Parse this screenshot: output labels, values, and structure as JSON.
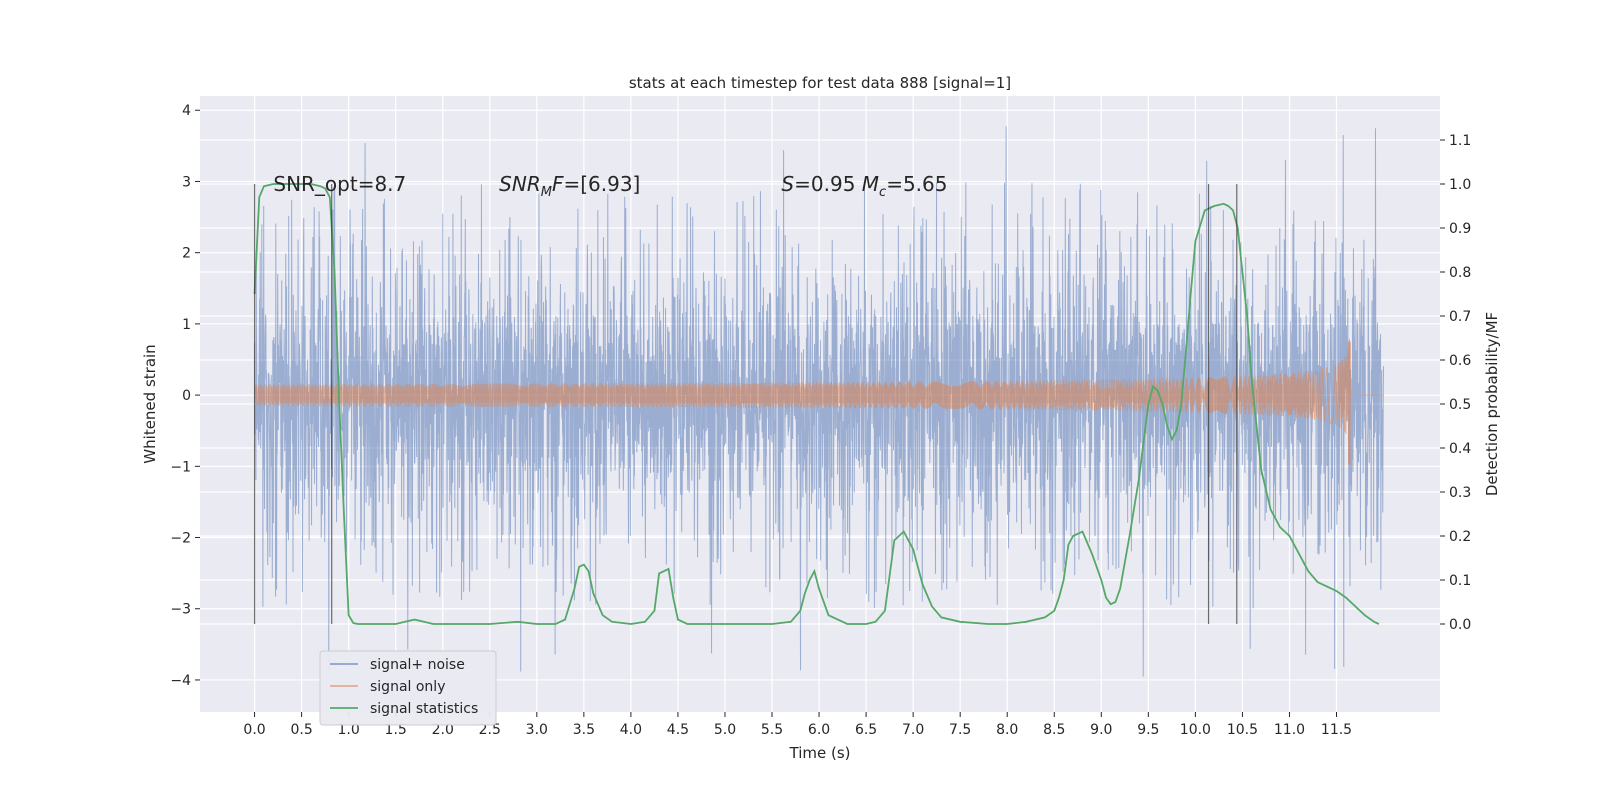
{
  "chart_data": {
    "type": "line",
    "title": "stats at each timestep for test data 888 [signal=1]",
    "xlabel": "Time (s)",
    "ylabel": "Whitened strain",
    "y2label": "Detection probability/MF",
    "xlim": [
      -0.58,
      12.6
    ],
    "ylim": [
      -4.45,
      4.2
    ],
    "y2lim": [
      -0.2,
      1.2
    ],
    "x_ticks": [
      0.0,
      0.5,
      1.0,
      1.5,
      2.0,
      2.5,
      3.0,
      3.5,
      4.0,
      4.5,
      5.0,
      5.5,
      6.0,
      6.5,
      7.0,
      7.5,
      8.0,
      8.5,
      9.0,
      9.5,
      10.0,
      10.5,
      11.0,
      11.5
    ],
    "x_tick_labels": [
      "0.0",
      "0.5",
      "1.0",
      "1.5",
      "2.0",
      "2.5",
      "3.0",
      "3.5",
      "4.0",
      "4.5",
      "5.0",
      "5.5",
      "6.0",
      "6.5",
      "7.0",
      "7.5",
      "8.0",
      "8.5",
      "9.0",
      "9.5",
      "10.0",
      "10.5",
      "11.0",
      "11.5"
    ],
    "y_ticks": [
      -4,
      -3,
      -2,
      -1,
      0,
      1,
      2,
      3,
      4
    ],
    "y_tick_labels": [
      "−4",
      "−3",
      "−2",
      "−1",
      "0",
      "1",
      "2",
      "3",
      "4"
    ],
    "y2_ticks": [
      0.0,
      0.1,
      0.2,
      0.3,
      0.4,
      0.5,
      0.6,
      0.7,
      0.8,
      0.9,
      1.0,
      1.1
    ],
    "y2_tick_labels": [
      "0.0",
      "0.1",
      "0.2",
      "0.3",
      "0.4",
      "0.5",
      "0.6",
      "0.7",
      "0.8",
      "0.9",
      "1.0",
      "1.1"
    ],
    "grid": true,
    "legend": "lower-left",
    "annotations": [
      {
        "text": "SNR_opt=8.7",
        "x": 0.2,
        "y2": 1.0
      },
      {
        "text": "SNR_MF=[6.93]",
        "x": 2.6,
        "y2": 1.0
      },
      {
        "text": "S=0.95   M_c=5.65",
        "x": 5.6,
        "y2": 1.0
      }
    ],
    "vertical_markers": [
      {
        "x": 0.0,
        "y2_range": [
          0.0,
          1.0
        ]
      },
      {
        "x": 0.82,
        "y2_range": [
          0.0,
          1.0
        ]
      },
      {
        "x": 10.14,
        "y2_range": [
          0.0,
          1.0
        ]
      },
      {
        "x": 10.44,
        "y2_range": [
          0.0,
          1.0
        ]
      }
    ],
    "series": [
      {
        "name": "signal+ noise",
        "color": "#4c72b0",
        "axis": "left",
        "x_range": [
          0.0,
          12.0
        ],
        "envelope": {
          "core": 1.2,
          "typical_peak": 2.4,
          "max": 3.85,
          "min": -4.1
        }
      },
      {
        "name": "signal only",
        "color": "#dd8452",
        "axis": "left",
        "x_range": [
          0.0,
          12.0
        ],
        "chirp": {
          "start_amp": 0.0,
          "peak_time": 11.65,
          "peak_pos": 0.75,
          "peak_neg": -0.98
        }
      },
      {
        "name": "signal statistics",
        "color": "#55a868",
        "axis": "right",
        "x": [
          0.0,
          0.05,
          0.1,
          0.2,
          0.3,
          0.4,
          0.5,
          0.6,
          0.7,
          0.75,
          0.8,
          0.85,
          0.9,
          0.95,
          1.0,
          1.05,
          1.1,
          1.3,
          1.5,
          1.6,
          1.7,
          1.8,
          1.9,
          2.0,
          2.2,
          2.5,
          2.8,
          3.0,
          3.2,
          3.3,
          3.4,
          3.45,
          3.5,
          3.55,
          3.6,
          3.7,
          3.8,
          4.0,
          4.15,
          4.25,
          4.3,
          4.35,
          4.4,
          4.45,
          4.5,
          4.6,
          5.0,
          5.5,
          5.7,
          5.8,
          5.85,
          5.9,
          5.95,
          6.0,
          6.1,
          6.3,
          6.5,
          6.6,
          6.7,
          6.8,
          6.85,
          6.9,
          7.0,
          7.1,
          7.2,
          7.3,
          7.5,
          7.8,
          8.0,
          8.2,
          8.4,
          8.5,
          8.55,
          8.6,
          8.65,
          8.7,
          8.8,
          8.9,
          9.0,
          9.05,
          9.1,
          9.15,
          9.2,
          9.3,
          9.4,
          9.5,
          9.55,
          9.6,
          9.65,
          9.7,
          9.75,
          9.8,
          9.85,
          9.9,
          9.95,
          10.0,
          10.1,
          10.2,
          10.3,
          10.35,
          10.4,
          10.45,
          10.5,
          10.55,
          10.6,
          10.7,
          10.8,
          10.9,
          11.0,
          11.1,
          11.2,
          11.3,
          11.4,
          11.5,
          11.6,
          11.7,
          11.8,
          11.9,
          11.95
        ],
        "values": [
          0.75,
          0.97,
          0.995,
          1.0,
          1.0,
          1.0,
          1.0,
          1.0,
          0.995,
          0.99,
          0.97,
          0.8,
          0.5,
          0.25,
          0.02,
          0.002,
          0.0,
          0.0,
          0.0,
          0.005,
          0.01,
          0.005,
          0.0,
          0.0,
          0.0,
          0.0,
          0.005,
          0.0,
          0.0,
          0.01,
          0.08,
          0.13,
          0.135,
          0.12,
          0.07,
          0.02,
          0.005,
          0.0,
          0.005,
          0.03,
          0.115,
          0.12,
          0.125,
          0.06,
          0.01,
          0.0,
          0.0,
          0.0,
          0.005,
          0.03,
          0.07,
          0.1,
          0.12,
          0.08,
          0.02,
          0.0,
          0.0,
          0.005,
          0.03,
          0.19,
          0.2,
          0.21,
          0.17,
          0.09,
          0.04,
          0.015,
          0.005,
          0.0,
          0.0,
          0.005,
          0.015,
          0.03,
          0.06,
          0.1,
          0.18,
          0.2,
          0.21,
          0.16,
          0.1,
          0.06,
          0.045,
          0.05,
          0.08,
          0.2,
          0.33,
          0.5,
          0.54,
          0.53,
          0.5,
          0.45,
          0.42,
          0.44,
          0.5,
          0.62,
          0.75,
          0.87,
          0.94,
          0.95,
          0.955,
          0.95,
          0.94,
          0.9,
          0.8,
          0.7,
          0.55,
          0.35,
          0.26,
          0.22,
          0.2,
          0.16,
          0.12,
          0.095,
          0.085,
          0.075,
          0.06,
          0.04,
          0.02,
          0.005,
          0.0
        ]
      }
    ]
  }
}
